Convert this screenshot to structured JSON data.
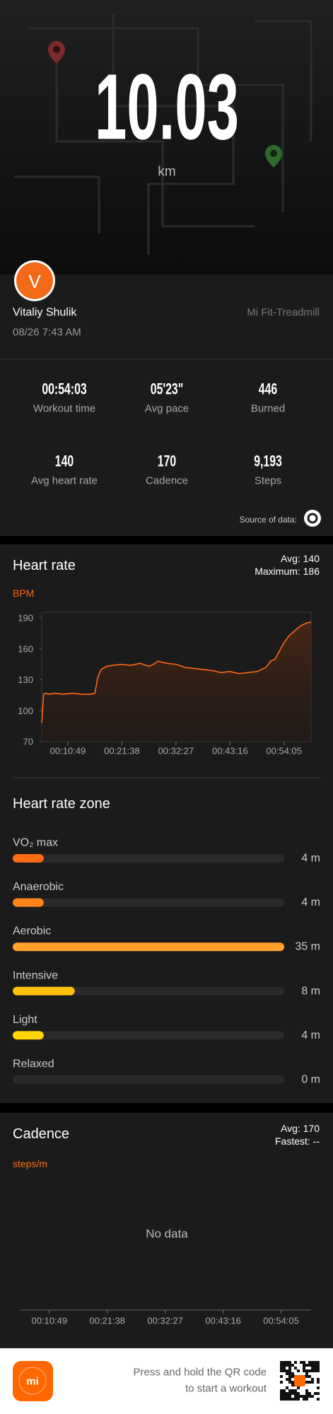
{
  "header": {
    "distance": "10.03",
    "unit": "km"
  },
  "profile": {
    "avatar_initial": "V",
    "name": "Vitaliy Shulik",
    "device": "Mi Fit-Treadmill",
    "date": "08/26 7:43 AM"
  },
  "stats": {
    "items": [
      {
        "value": "00:54:03",
        "label": "Workout time"
      },
      {
        "value": "05'23\"",
        "label": "Avg pace"
      },
      {
        "value": "446",
        "label": "Burned"
      },
      {
        "value": "140",
        "label": "Avg heart rate"
      },
      {
        "value": "170",
        "label": "Cadence"
      },
      {
        "value": "9,193",
        "label": "Steps"
      }
    ],
    "source_label": "Source of data:"
  },
  "chart_data": [
    {
      "type": "line",
      "title": "Heart rate",
      "avg_label": "Avg: 140",
      "max_label": "Maximum: 186",
      "unit": "BPM",
      "color": "#ff6a13",
      "x": [
        335,
        357,
        379,
        433,
        487,
        595,
        703,
        811,
        919,
        974,
        1006,
        1049,
        1114,
        1190,
        1298,
        1406,
        1514,
        1623,
        1677,
        1731,
        1839,
        1947,
        2055,
        2163,
        2272,
        2380,
        2488,
        2596,
        2704,
        2812,
        2921,
        2975,
        3029,
        3083,
        3137,
        3191,
        3245,
        3299,
        3353,
        3407,
        3461,
        3515,
        3570
      ],
      "values": [
        88,
        116,
        117,
        116,
        117,
        116,
        117,
        116,
        116,
        117,
        132,
        140,
        143,
        144,
        145,
        144,
        146,
        143,
        145,
        148,
        146,
        145,
        142,
        141,
        140,
        139,
        137,
        138,
        136,
        137,
        138,
        140,
        142,
        148,
        150,
        158,
        166,
        172,
        176,
        180,
        183,
        185,
        186
      ],
      "xlim": [
        335,
        3570
      ],
      "xticks": [
        {
          "value": 649,
          "label": "00:10:49"
        },
        {
          "value": 1298,
          "label": "00:21:38"
        },
        {
          "value": 1947,
          "label": "00:32:27"
        },
        {
          "value": 2596,
          "label": "00:43:16"
        },
        {
          "value": 3245,
          "label": "00:54:05"
        }
      ],
      "ylim": [
        70,
        190
      ],
      "yticks": [
        190,
        160,
        130,
        100,
        70
      ]
    },
    {
      "type": "bar",
      "title": "Heart rate zone",
      "categories": [
        "VO₂ max",
        "Anaerobic",
        "Aerobic",
        "Intensive",
        "Light",
        "Relaxed"
      ],
      "values": [
        4,
        4,
        35,
        8,
        4,
        0
      ],
      "value_labels": [
        "4 m",
        "4 m",
        "35 m",
        "8 m",
        "4 m",
        "0 m"
      ],
      "colors": [
        "#ff6a13",
        "#ff8519",
        "#ffa02a",
        "#ffc20a",
        "#ffd500",
        "#555555"
      ],
      "xlim": [
        0,
        35
      ]
    },
    {
      "type": "line",
      "title": "Cadence",
      "avg_label": "Avg: 170",
      "fastest_label": "Fastest: --",
      "unit": "steps/m",
      "message": "No data",
      "xlim": [
        326,
        3581
      ],
      "xticks": [
        {
          "value": 649,
          "label": "00:10:49"
        },
        {
          "value": 1298,
          "label": "00:21:38"
        },
        {
          "value": 1947,
          "label": "00:32:27"
        },
        {
          "value": 2596,
          "label": "00:43:16"
        },
        {
          "value": 3245,
          "label": "00:54:05"
        }
      ]
    }
  ],
  "footer": {
    "logo": "mi",
    "line1": "Press and hold the QR code",
    "line2": "to start a workout"
  }
}
